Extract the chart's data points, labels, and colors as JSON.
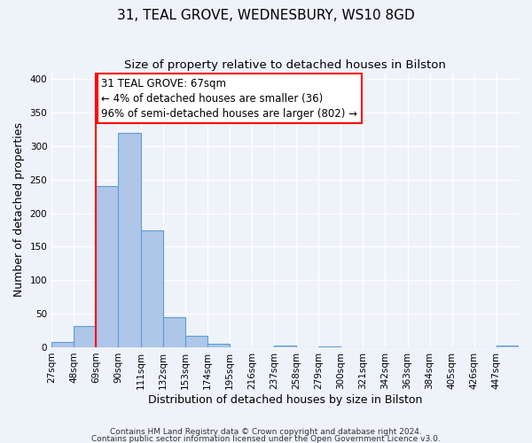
{
  "title": "31, TEAL GROVE, WEDNESBURY, WS10 8GD",
  "subtitle": "Size of property relative to detached houses in Bilston",
  "xlabel": "Distribution of detached houses by size in Bilston",
  "ylabel": "Number of detached properties",
  "bin_labels": [
    "27sqm",
    "48sqm",
    "69sqm",
    "90sqm",
    "111sqm",
    "132sqm",
    "153sqm",
    "174sqm",
    "195sqm",
    "216sqm",
    "237sqm",
    "258sqm",
    "279sqm",
    "300sqm",
    "321sqm",
    "342sqm",
    "363sqm",
    "384sqm",
    "405sqm",
    "426sqm",
    "447sqm"
  ],
  "bin_edges": [
    27,
    48,
    69,
    90,
    111,
    132,
    153,
    174,
    195,
    216,
    237,
    258,
    279,
    300,
    321,
    342,
    363,
    384,
    405,
    426,
    447
  ],
  "bar_heights": [
    8,
    32,
    240,
    320,
    175,
    45,
    17,
    5,
    0,
    0,
    3,
    0,
    1,
    0,
    0,
    0,
    0,
    0,
    0,
    0,
    2
  ],
  "bar_color": "#aec6e8",
  "bar_edge_color": "#5a9fd4",
  "property_line_x": 69,
  "annotation_text": "31 TEAL GROVE: 67sqm\n← 4% of detached houses are smaller (36)\n96% of semi-detached houses are larger (802) →",
  "annotation_box_color": "white",
  "annotation_box_edge_color": "red",
  "vline_color": "red",
  "ylim": [
    0,
    410
  ],
  "yticks": [
    0,
    50,
    100,
    150,
    200,
    250,
    300,
    350,
    400
  ],
  "background_color": "#eef2f9",
  "grid_color": "white",
  "footer1": "Contains HM Land Registry data © Crown copyright and database right 2024.",
  "footer2": "Contains public sector information licensed under the Open Government Licence v3.0.",
  "title_fontsize": 11,
  "subtitle_fontsize": 9.5,
  "label_fontsize": 9,
  "tick_fontsize": 7.5,
  "annotation_fontsize": 8.5,
  "footer_fontsize": 6.5
}
